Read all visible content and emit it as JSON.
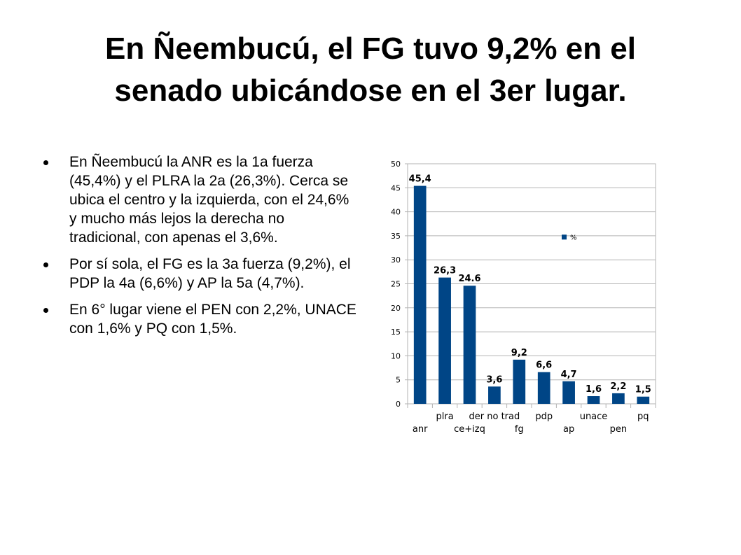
{
  "slide": {
    "title_line1": "En Ñeembucú, el FG tuvo 9,2% en el",
    "title_line2": "senado ubicándose en el 3er lugar.",
    "bullets": [
      "En Ñeembucú la ANR es la 1a fuerza (45,4%) y el PLRA la 2a (26,3%). Cerca se ubica el centro y la izquierda, con el 24,6% y mucho más lejos la derecha no tradicional, con apenas el 3,6%.",
      "Por sí sola, el FG es la 3a fuerza (9,2%), el PDP la 4a (6,6%) y AP la 5a (4,7%).",
      "En 6° lugar viene el PEN con 2,2%, UNACE con 1,6% y PQ con 1,5%."
    ]
  },
  "chart_data": {
    "type": "bar",
    "categories": [
      "anr",
      "plra",
      "ce+izq",
      "der no trad",
      "fg",
      "pdp",
      "ap",
      "unace",
      "pen",
      "pq"
    ],
    "series": [
      {
        "name": "%",
        "values": [
          45.4,
          26.3,
          24.6,
          3.6,
          9.2,
          6.6,
          4.7,
          1.6,
          2.2,
          1.5
        ]
      }
    ],
    "data_labels": [
      "45,4",
      "26,3",
      "24.6",
      "3,6",
      "9,2",
      "6,6",
      "4,7",
      "1,6",
      "2,2",
      "1,5"
    ],
    "ylim": [
      0,
      50
    ],
    "yticks": [
      0,
      5,
      10,
      15,
      20,
      25,
      30,
      35,
      40,
      45,
      50
    ],
    "grid": true,
    "legend": "center-right",
    "bar_color": "#004586"
  }
}
